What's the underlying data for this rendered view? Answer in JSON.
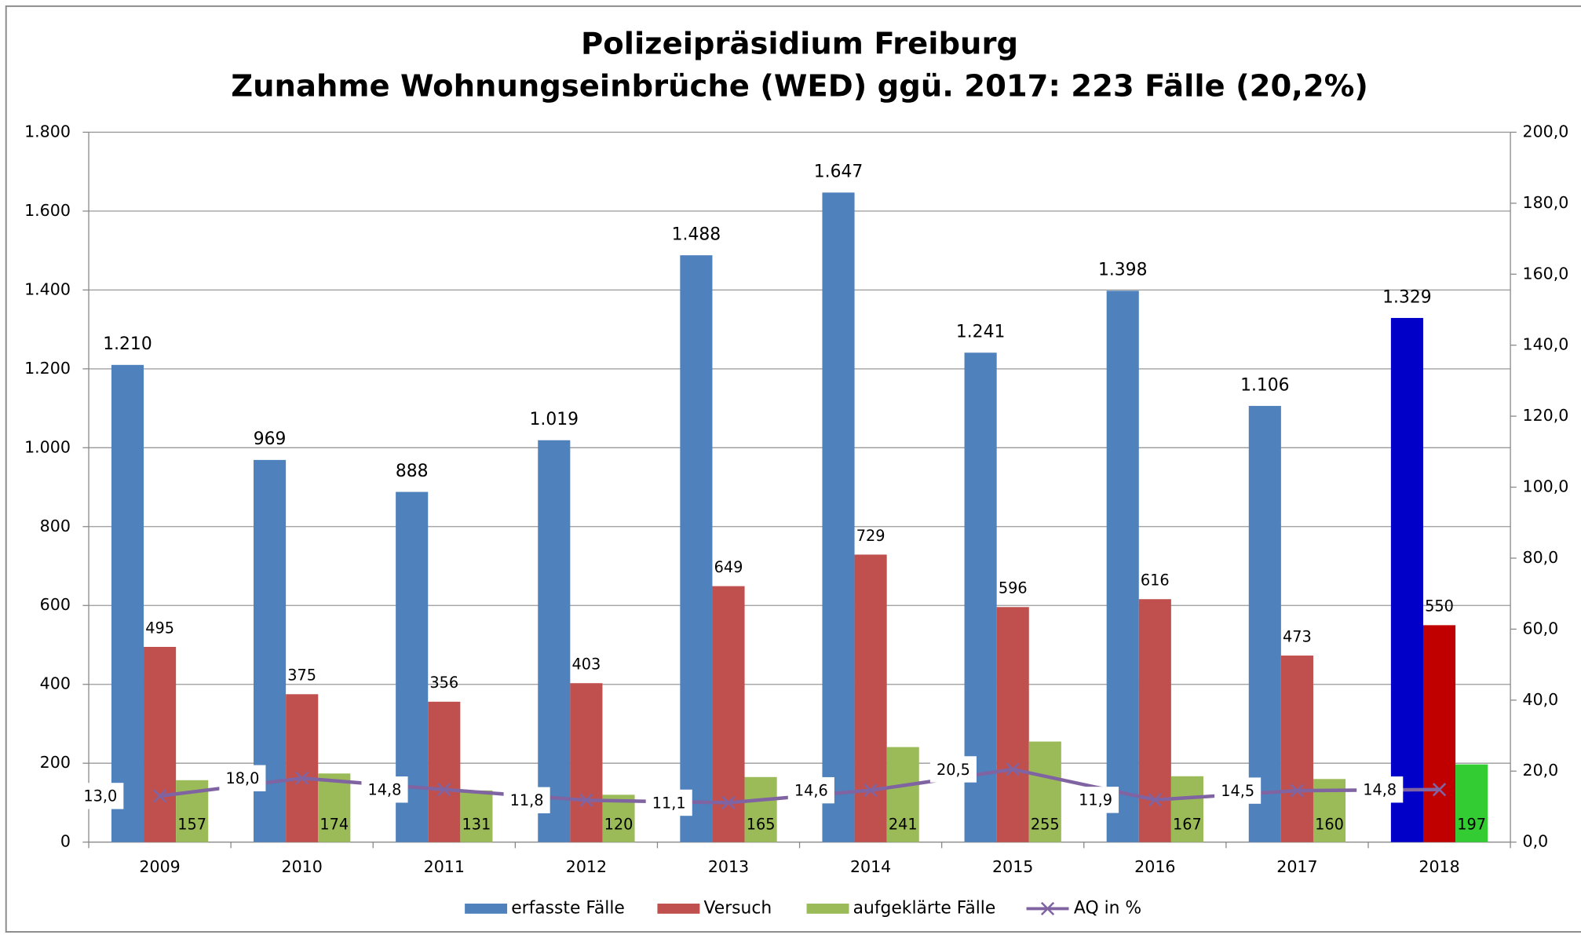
{
  "chart_data": {
    "type": "bar",
    "title": [
      "Polizeipräsidium Freiburg",
      "Zunahme Wohnungseinbrüche (WED) ggü. 2017: 223 Fälle (20,2%)"
    ],
    "categories": [
      "2009",
      "2010",
      "2011",
      "2012",
      "2013",
      "2014",
      "2015",
      "2016",
      "2017",
      "2018"
    ],
    "series": [
      {
        "name": "erfasste Fälle",
        "color": "#4f81bd",
        "colors": [
          "#4f81bd",
          "#4f81bd",
          "#4f81bd",
          "#4f81bd",
          "#4f81bd",
          "#4f81bd",
          "#4f81bd",
          "#4f81bd",
          "#4f81bd",
          "#0000c8"
        ],
        "values": [
          1210,
          969,
          888,
          1019,
          1488,
          1647,
          1241,
          1398,
          1106,
          1329
        ],
        "value_labels": [
          "1.210",
          "969",
          "888",
          "1.019",
          "1.488",
          "1.647",
          "1.241",
          "1.398",
          "1.106",
          "1.329"
        ]
      },
      {
        "name": "Versuch",
        "color": "#c0504d",
        "colors": [
          "#c0504d",
          "#c0504d",
          "#c0504d",
          "#c0504d",
          "#c0504d",
          "#c0504d",
          "#c0504d",
          "#c0504d",
          "#c0504d",
          "#c00000"
        ],
        "values": [
          495,
          375,
          356,
          403,
          649,
          729,
          596,
          616,
          473,
          550
        ]
      },
      {
        "name": "aufgeklärte Fälle",
        "color": "#9bbb59",
        "colors": [
          "#9bbb59",
          "#9bbb59",
          "#9bbb59",
          "#9bbb59",
          "#9bbb59",
          "#9bbb59",
          "#9bbb59",
          "#9bbb59",
          "#9bbb59",
          "#33cc33"
        ],
        "values": [
          157,
          174,
          131,
          120,
          165,
          241,
          255,
          167,
          160,
          197
        ]
      },
      {
        "name": "AQ in %",
        "color": "#8064a2",
        "axis": "y2",
        "type": "line",
        "values": [
          13.0,
          18.0,
          14.8,
          11.8,
          11.1,
          14.6,
          20.5,
          11.9,
          14.5,
          14.8
        ],
        "value_labels": [
          "13,0",
          "18,0",
          "14,8",
          "11,8",
          "11,1",
          "14,6",
          "20,5",
          "11,9",
          "14,5",
          "14,8"
        ]
      }
    ],
    "ylim": [
      0,
      1800
    ],
    "yticks": [
      0,
      200,
      400,
      600,
      800,
      {
        "value": 1000,
        "label": "1.000"
      },
      {
        "value": 1200,
        "label": "1.200"
      },
      {
        "value": 1400,
        "label": "1.400"
      },
      {
        "value": 1600,
        "label": "1.600"
      },
      {
        "value": 1800,
        "label": "1.800"
      }
    ],
    "y2lim": [
      0,
      200
    ],
    "y2ticks": [
      {
        "value": 0,
        "label": "0,0"
      },
      {
        "value": 20,
        "label": "20,0"
      },
      {
        "value": 40,
        "label": "40,0"
      },
      {
        "value": 60,
        "label": "60,0"
      },
      {
        "value": 80,
        "label": "80,0"
      },
      {
        "value": 100,
        "label": "100,0"
      },
      {
        "value": 120,
        "label": "120,0"
      },
      {
        "value": 140,
        "label": "140,0"
      },
      {
        "value": 160,
        "label": "160,0"
      },
      {
        "value": 180,
        "label": "180,0"
      },
      {
        "value": 200,
        "label": "200,0"
      }
    ],
    "grid": true,
    "legend": "bottom"
  }
}
